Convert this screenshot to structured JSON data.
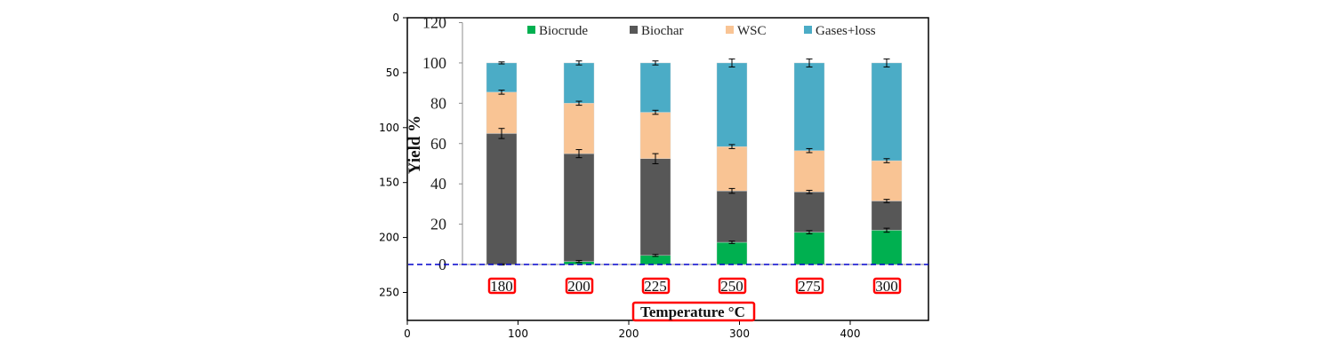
{
  "chart_data": {
    "type": "bar",
    "stacked": true,
    "title": "",
    "xlabel": "Temperature °C",
    "ylabel": "Yield %",
    "ylim": [
      0,
      120
    ],
    "yticks": [
      "0",
      "20",
      "40",
      "60",
      "80",
      "100",
      "120"
    ],
    "categories": [
      "180",
      "200",
      "225",
      "250",
      "275",
      "300"
    ],
    "series": [
      {
        "name": "Biocrude",
        "color": "#00b050",
        "values": [
          0,
          1.5,
          4.5,
          11,
          16,
          17
        ],
        "errors": [
          0.3,
          0.5,
          0.5,
          0.6,
          0.8,
          1.0
        ]
      },
      {
        "name": "Biochar",
        "color": "#575757",
        "values": [
          65,
          53.5,
          48,
          25.5,
          20,
          14.5
        ],
        "errors": [
          2.5,
          2.0,
          2.5,
          1.2,
          0.8,
          0.8
        ]
      },
      {
        "name": "WSC",
        "color": "#f9c494",
        "values": [
          20.5,
          25,
          23,
          22,
          20.5,
          20
        ],
        "errors": [
          1.0,
          1.0,
          1.0,
          1.0,
          1.0,
          1.0
        ]
      },
      {
        "name": "Gases+loss",
        "color": "#4bacc6",
        "values": [
          14.5,
          20,
          24.5,
          41.5,
          43.5,
          48.5
        ],
        "errors": [
          0.5,
          1.0,
          1.0,
          2.0,
          2.0,
          2.0
        ]
      }
    ]
  },
  "overlay": {
    "xticks": [
      "0",
      "100",
      "200",
      "300",
      "400"
    ],
    "yticks": [
      "0",
      "50",
      "100",
      "150",
      "200",
      "250"
    ],
    "frame_color": "#000000",
    "box_color": "#ff0000",
    "dashed_line_color": "#0000cc"
  }
}
